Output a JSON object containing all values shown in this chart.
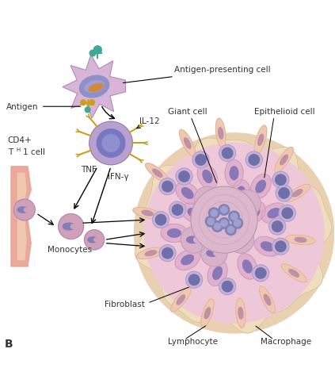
{
  "title": "",
  "background_color": "#ffffff",
  "fig_width": 4.23,
  "fig_height": 4.89,
  "label_B": "B",
  "labels": {
    "antigen_presenting_cell": "Antigen-presenting cell",
    "antigen": "Antigen",
    "il12": "IL-12",
    "tnf": "TNF",
    "ifn": "IFN-γ",
    "monocytes": "Monocytes",
    "fibroblast": "Fibroblast",
    "giant_cell": "Giant cell",
    "epithelioid_cell": "Epithelioid cell",
    "lymphocyte": "Lymphocyte",
    "macrophage": "Macrophage"
  },
  "colors": {
    "cell_body_light": "#d8b4d8",
    "cell_nucleus_outer": "#9090c8",
    "th1_body": "#b8a0d0",
    "th1_nucleus": "#7878c0",
    "vessel_color": "#e8a090",
    "monocyte_body": "#d0a0b8",
    "monocyte_nucleus": "#8080b8",
    "antigen_color": "#d4883a",
    "receptor_gold": "#c8a020",
    "receptor_teal": "#40a898",
    "arrow_color": "#333333",
    "text_color": "#333333"
  }
}
